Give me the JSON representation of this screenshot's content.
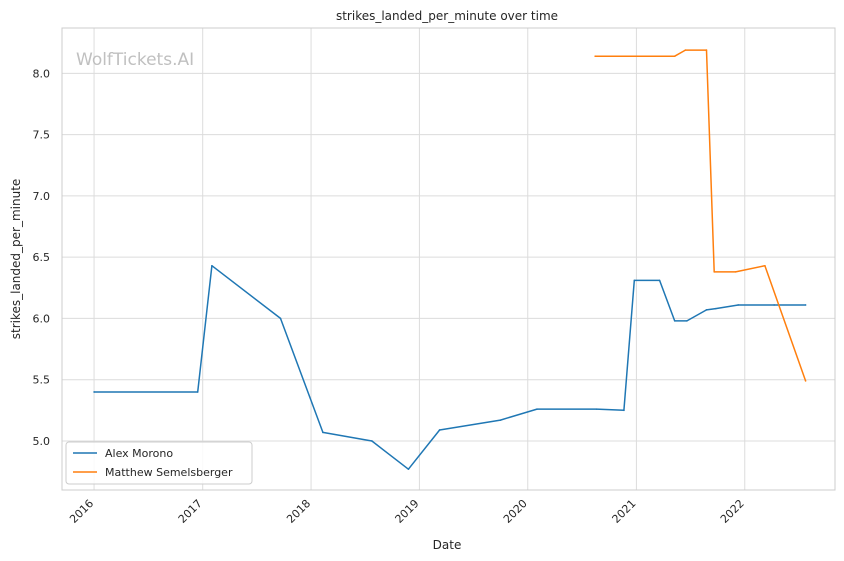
{
  "chart_data": {
    "type": "line",
    "title": "strikes_landed_per_minute over time",
    "xlabel": "Date",
    "ylabel": "strikes_landed_per_minute",
    "watermark": "WolfTickets.AI",
    "xlim": [
      "2015-09-15",
      "2022-11-01"
    ],
    "ylim": [
      4.6,
      8.37
    ],
    "x_ticks": [
      "2016",
      "2017",
      "2018",
      "2019",
      "2020",
      "2021",
      "2022"
    ],
    "y_ticks": [
      "5.0",
      "5.5",
      "6.0",
      "6.5",
      "7.0",
      "7.5",
      "8.0"
    ],
    "grid": true,
    "legend_position": "lower-left",
    "series": [
      {
        "name": "Alex Morono",
        "color": "#1f77b4",
        "points": [
          {
            "x": "2016-01-01",
            "y": 5.4
          },
          {
            "x": "2016-12-15",
            "y": 5.4
          },
          {
            "x": "2017-02-01",
            "y": 6.43
          },
          {
            "x": "2017-09-20",
            "y": 6.0
          },
          {
            "x": "2018-02-10",
            "y": 5.07
          },
          {
            "x": "2018-07-25",
            "y": 5.0
          },
          {
            "x": "2018-11-25",
            "y": 4.77
          },
          {
            "x": "2019-03-10",
            "y": 5.09
          },
          {
            "x": "2019-10-01",
            "y": 5.17
          },
          {
            "x": "2020-02-01",
            "y": 5.26
          },
          {
            "x": "2020-08-20",
            "y": 5.26
          },
          {
            "x": "2020-11-20",
            "y": 5.25
          },
          {
            "x": "2020-12-25",
            "y": 6.31
          },
          {
            "x": "2021-03-20",
            "y": 6.31
          },
          {
            "x": "2021-05-10",
            "y": 5.98
          },
          {
            "x": "2021-06-20",
            "y": 5.98
          },
          {
            "x": "2021-08-25",
            "y": 6.07
          },
          {
            "x": "2021-09-25",
            "y": 6.08
          },
          {
            "x": "2021-12-10",
            "y": 6.11
          },
          {
            "x": "2022-04-10",
            "y": 6.11
          },
          {
            "x": "2022-07-25",
            "y": 6.11
          }
        ]
      },
      {
        "name": "Matthew Semelsberger",
        "color": "#ff7f0e",
        "points": [
          {
            "x": "2020-08-15",
            "y": 8.14
          },
          {
            "x": "2021-05-10",
            "y": 8.14
          },
          {
            "x": "2021-06-15",
            "y": 8.19
          },
          {
            "x": "2021-08-25",
            "y": 8.19
          },
          {
            "x": "2021-09-20",
            "y": 6.38
          },
          {
            "x": "2021-12-01",
            "y": 6.38
          },
          {
            "x": "2022-03-10",
            "y": 6.43
          },
          {
            "x": "2022-07-25",
            "y": 5.49
          }
        ]
      }
    ]
  }
}
